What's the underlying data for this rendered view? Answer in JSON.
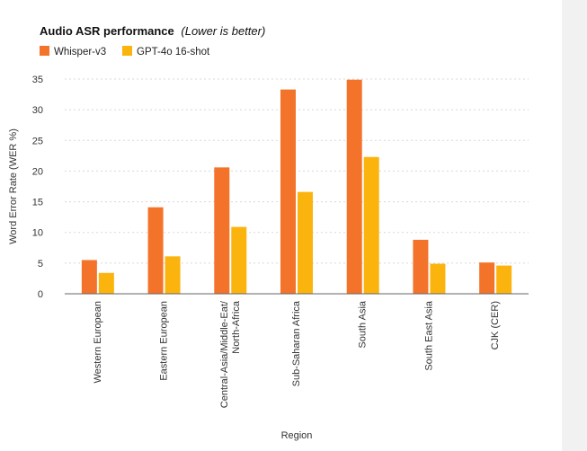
{
  "chart_data": {
    "type": "bar",
    "title": "Audio ASR performance",
    "title_note": "(Lower is better)",
    "xlabel": "Region",
    "ylabel": "Word Error Rate (WER %)",
    "ylim": [
      0,
      35
    ],
    "yticks": [
      0,
      5,
      10,
      15,
      20,
      25,
      30,
      35
    ],
    "grid": true,
    "legend_position": "top-left",
    "categories": [
      "Western European",
      "Eastern European",
      "Central-Asia/Middle-Eat/ North-Africa",
      "Sub-Saharan Africa",
      "South Asia",
      "South East Asia",
      "CJK (CER)"
    ],
    "category_lines": [
      [
        "Western European"
      ],
      [
        "Eastern European"
      ],
      [
        "Central-Asia/Middle-Eat/",
        "North-Africa"
      ],
      [
        "Sub-Saharan Africa"
      ],
      [
        "South Asia"
      ],
      [
        "South East Asia"
      ],
      [
        "CJK (CER)"
      ]
    ],
    "series": [
      {
        "name": "Whisper-v3",
        "color": "#f4732a",
        "values": [
          5.5,
          14.1,
          20.6,
          33.3,
          34.9,
          8.8,
          5.1
        ]
      },
      {
        "name": "GPT-4o 16-shot",
        "color": "#fbb30e",
        "values": [
          3.4,
          6.1,
          10.9,
          16.6,
          22.3,
          4.9,
          4.6
        ]
      }
    ]
  }
}
